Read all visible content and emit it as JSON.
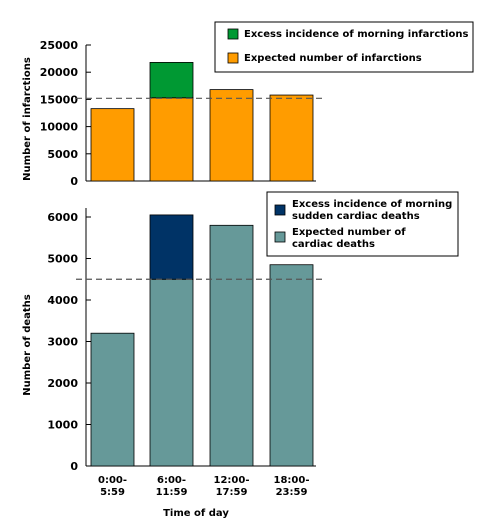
{
  "chart_data": [
    {
      "type": "bar",
      "stacked": true,
      "ylabel": "Number of infarctions",
      "ylim": [
        0,
        25000
      ],
      "yticks": [
        "25000",
        "20000",
        "15000",
        "10000",
        "5000",
        "0"
      ],
      "categories": [
        "0:00-5:59",
        "6:00-11:59",
        "12:00-17:59",
        "18:00-23:59"
      ],
      "reference_line": 15200,
      "series": [
        {
          "name": "Expected number of infarctions",
          "color": "#ff9c00",
          "values": [
            13300,
            15300,
            16800,
            15800
          ]
        },
        {
          "name": "Excess incidence of morning infarctions",
          "color": "#009933",
          "values": [
            0,
            6500,
            0,
            0
          ]
        }
      ],
      "legend": [
        "Excess incidence of morning infarctions",
        "Expected number of infarctions"
      ],
      "legend_position": "top-right"
    },
    {
      "type": "bar",
      "stacked": true,
      "ylabel": "Number of deaths",
      "xlabel": "Time of day",
      "ylim": [
        0,
        6000
      ],
      "yticks": [
        "6000",
        "5000",
        "4000",
        "3000",
        "2000",
        "1000",
        "0"
      ],
      "categories": [
        "0:00-5:59",
        "6:00-11:59",
        "12:00-17:59",
        "18:00-23:59"
      ],
      "category_labels": [
        [
          "0:00-",
          "5:59"
        ],
        [
          "6:00-",
          "11:59"
        ],
        [
          "12:00-",
          "17:59"
        ],
        [
          "18:00-",
          "23:59"
        ]
      ],
      "reference_line": 4500,
      "series": [
        {
          "name": "Expected number of cardiac deaths",
          "color": "#669999",
          "values": [
            3200,
            4500,
            5800,
            4850
          ]
        },
        {
          "name": "Excess incidence of morning sudden cardiac deaths",
          "color": "#003366",
          "values": [
            0,
            1550,
            0,
            0
          ]
        }
      ],
      "legend": [
        [
          "Excess incidence of morning",
          "sudden cardiac deaths"
        ],
        [
          "Expected number of",
          "cardiac deaths"
        ]
      ],
      "legend_position": "top-right"
    }
  ]
}
